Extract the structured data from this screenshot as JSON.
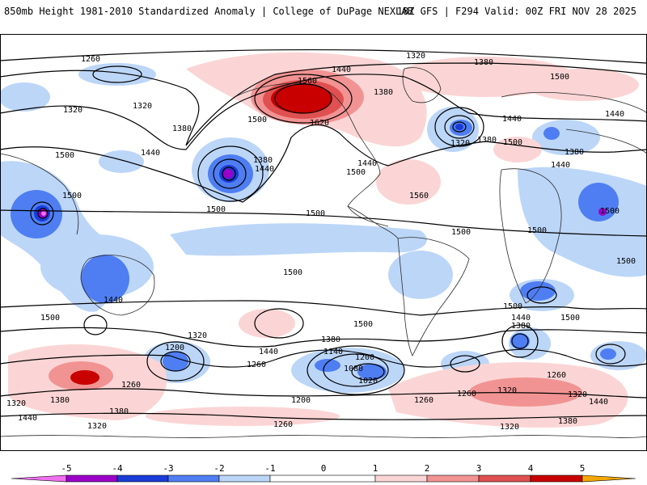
{
  "header": {
    "left_title": "850mb Height 1981-2010 Standardized Anomaly | College of DuPage NEXLAB",
    "right_title": "18Z GFS | F294 Valid: 00Z FRI NOV 28 2025"
  },
  "colors": {
    "neg5": "#f070f0",
    "neg4": "#9a00c8",
    "neg3": "#1a3cd6",
    "neg2": "#4f7ef2",
    "neg1": "#bcd6f8",
    "zero": "#ffffff",
    "pos1": "#fbd5d5",
    "pos2": "#f29393",
    "pos3": "#e05050",
    "pos4": "#c80000",
    "pos5": "#f5a800"
  },
  "colorbar": {
    "ticks": [
      "-5",
      "-4",
      "-3",
      "-2",
      "-1",
      "0",
      "1",
      "2",
      "3",
      "4",
      "5"
    ]
  },
  "contour_labels": {
    "l1260a": "1260",
    "l1320a": "1320",
    "l1380a": "1380",
    "l1500a": "1500",
    "l1440a": "1440",
    "l1560a": "1560",
    "l1380b": "1380",
    "l1500b": "1500",
    "l1440b": "1440",
    "l1320b": "1320",
    "l1320c": "1320",
    "l1380c": "1380",
    "l1500c": "1500",
    "l1440c": "1440",
    "l1500d": "1500",
    "l1380d": "1380",
    "l1440d": "1440",
    "l1500e": "1500",
    "l1620": "1620",
    "l1380e": "1380",
    "l1440e": "1440",
    "l1500f": "1500",
    "l1560b": "1560",
    "l1320d": "1320",
    "l1380f": "1380",
    "l1500g": "1500",
    "l1440f": "1440",
    "l1380g": "1380",
    "l1440g": "1440",
    "l1500h": "1500",
    "l1500i": "1500",
    "l1500j": "1500",
    "l1500k": "1500",
    "l1500l": "1500",
    "l1500m": "1500",
    "l1440h": "1440",
    "l1500n": "1500",
    "l1500o": "1500",
    "l1440i": "1440",
    "l1380h": "1380",
    "l1320e": "1320",
    "l1200a": "1200",
    "l1260b": "1260",
    "l1440j": "1440",
    "l1380i": "1380",
    "l1140": "1140",
    "l1200b": "1200",
    "l1080": "1080",
    "l1020": "1020",
    "l1500p": "1500",
    "l1260c": "1260",
    "l1200c": "1200",
    "l1260d": "1260",
    "l1320f": "1320",
    "l1320g": "1320",
    "l1380j": "1380",
    "l1440k": "1440",
    "l1320h": "1320",
    "l1380k": "1380",
    "l1260e": "1260",
    "l1320i": "1320",
    "l1260f": "1260",
    "l1380l": "1380",
    "l1440l": "1440",
    "l1320j": "1320",
    "l1260g": "1260",
    "l1500q": "1500"
  }
}
